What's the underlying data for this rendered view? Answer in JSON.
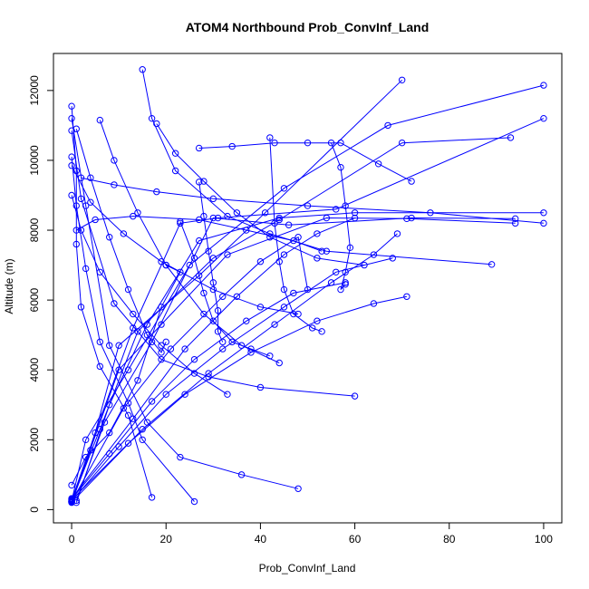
{
  "chart_data": {
    "type": "line",
    "title": "ATOM4 Northbound Prob_ConvInf_Land",
    "xlabel": "Prob_ConvInf_Land",
    "ylabel": "Altitude (m)",
    "xlim": [
      -3.85,
      103.85
    ],
    "ylim": [
      -379,
      13060
    ],
    "xticks": [
      0,
      20,
      40,
      60,
      80,
      100
    ],
    "yticks": [
      0,
      2000,
      4000,
      6000,
      8000,
      10000,
      12000
    ],
    "grid": false,
    "legend": "none",
    "color": "#0000FF",
    "series": [
      {
        "x": [
          0,
          4,
          10,
          27,
          41,
          70
        ],
        "y": [
          200,
          1700,
          4700,
          6700,
          8500,
          12300
        ]
      },
      {
        "x": [
          0,
          6,
          14,
          30,
          44,
          70,
          93
        ],
        "y": [
          230,
          2300,
          5100,
          7200,
          8300,
          10500,
          10650
        ]
      },
      {
        "x": [
          0,
          3,
          12,
          25,
          45,
          67,
          100
        ],
        "y": [
          250,
          2000,
          4000,
          7000,
          9200,
          11000,
          12150
        ]
      },
      {
        "x": [
          0,
          5,
          13,
          23,
          31,
          56,
          100
        ],
        "y": [
          270,
          2200,
          5200,
          8200,
          8350,
          8600,
          11200
        ]
      },
      {
        "x": [
          1,
          8,
          16,
          27,
          44,
          60,
          100
        ],
        "y": [
          200,
          3000,
          5300,
          7700,
          8350,
          8500,
          8500
        ]
      },
      {
        "x": [
          1,
          7,
          17,
          30,
          46,
          72,
          94
        ],
        "y": [
          260,
          2500,
          4800,
          8350,
          8150,
          8350,
          8330
        ]
      },
      {
        "x": [
          0,
          10,
          19,
          33,
          54,
          71,
          94
        ],
        "y": [
          220,
          4000,
          5300,
          7300,
          8350,
          8330,
          8200
        ]
      },
      {
        "x": [
          0,
          1,
          3,
          6,
          12,
          15,
          26
        ],
        "y": [
          10100,
          8700,
          6900,
          4800,
          3050,
          2000,
          230
        ]
      },
      {
        "x": [
          0,
          3,
          8,
          16,
          23,
          36,
          48
        ],
        "y": [
          11200,
          8700,
          4700,
          2500,
          1500,
          1000,
          600
        ]
      },
      {
        "x": [
          0,
          2,
          9,
          19,
          29,
          40,
          60
        ],
        "y": [
          10850,
          8900,
          5900,
          4300,
          3800,
          3500,
          3250
        ]
      },
      {
        "x": [
          15,
          17,
          22,
          33,
          42,
          54,
          89
        ],
        "y": [
          12600,
          11200,
          9700,
          8400,
          7900,
          7400,
          7020
        ]
      },
      {
        "x": [
          0,
          2,
          6,
          13,
          19,
          26,
          33
        ],
        "y": [
          9000,
          8000,
          6800,
          5600,
          4700,
          3900,
          3300
        ]
      },
      {
        "x": [
          2,
          9,
          18,
          30,
          50,
          76,
          100
        ],
        "y": [
          9500,
          9300,
          9100,
          8900,
          8700,
          8500,
          8200
        ]
      },
      {
        "x": [
          6,
          9,
          14,
          20,
          28,
          36,
          44
        ],
        "y": [
          11150,
          10000,
          8500,
          7000,
          5600,
          4700,
          4200
        ]
      },
      {
        "x": [
          27,
          34,
          43,
          50,
          57,
          65,
          72
        ],
        "y": [
          10350,
          10400,
          10500,
          10500,
          10500,
          9900,
          9400
        ]
      },
      {
        "x": [
          18,
          22,
          28,
          35,
          42,
          52,
          62
        ],
        "y": [
          11050,
          10200,
          9400,
          8500,
          7800,
          7200,
          7000
        ]
      },
      {
        "x": [
          42,
          43,
          44,
          45,
          47,
          51,
          53
        ],
        "y": [
          10650,
          8200,
          7100,
          6300,
          5600,
          5200,
          5100
        ]
      },
      {
        "x": [
          55,
          57,
          58,
          59,
          58,
          57,
          58
        ],
        "y": [
          10500,
          9800,
          8700,
          7500,
          6800,
          6300,
          6450
        ]
      },
      {
        "x": [
          1,
          5,
          13,
          27,
          37,
          47,
          53
        ],
        "y": [
          8000,
          8300,
          8400,
          8300,
          8000,
          7700,
          7400
        ]
      },
      {
        "x": [
          1,
          4,
          8,
          12,
          16,
          19,
          20
        ],
        "y": [
          10900,
          9500,
          7800,
          6300,
          5000,
          4500,
          4800
        ]
      },
      {
        "x": [
          0,
          1,
          1,
          2,
          6,
          12,
          17
        ],
        "y": [
          11550,
          9700,
          7600,
          5800,
          4100,
          2700,
          350
        ]
      },
      {
        "x": [
          0,
          4,
          11,
          19,
          30,
          40,
          48
        ],
        "y": [
          9850,
          8800,
          7900,
          7100,
          6300,
          5800,
          5600
        ]
      },
      {
        "x": [
          23,
          26,
          28,
          30,
          34,
          38,
          42
        ],
        "y": [
          8250,
          7200,
          6200,
          5400,
          4800,
          4600,
          4400
        ]
      },
      {
        "x": [
          27,
          28,
          29,
          30,
          31,
          31,
          32
        ],
        "y": [
          9380,
          8400,
          7400,
          6500,
          5700,
          5100,
          4800
        ]
      },
      {
        "x": [
          0,
          3,
          8,
          14,
          19,
          23,
          20
        ],
        "y": [
          700,
          1500,
          2200,
          3700,
          5800,
          6800,
          7000
        ]
      },
      {
        "x": [
          0,
          8,
          17,
          26,
          37,
          47,
          58
        ],
        "y": [
          300,
          1600,
          3100,
          4300,
          5400,
          6200,
          6500
        ]
      },
      {
        "x": [
          0,
          10,
          20,
          32,
          45,
          56,
          68
        ],
        "y": [
          240,
          1800,
          3300,
          4600,
          5800,
          6800,
          7200
        ]
      },
      {
        "x": [
          0,
          12,
          24,
          38,
          52,
          64,
          71
        ],
        "y": [
          280,
          1900,
          3300,
          4500,
          5400,
          5900,
          6100
        ]
      },
      {
        "x": [
          0,
          15,
          29,
          43,
          55,
          64,
          69
        ],
        "y": [
          210,
          2300,
          3900,
          5300,
          6500,
          7300,
          7900
        ]
      },
      {
        "x": [
          0,
          13,
          24,
          35,
          45,
          52,
          60
        ],
        "y": [
          320,
          2600,
          4600,
          6100,
          7300,
          7900,
          8350
        ]
      },
      {
        "x": [
          0,
          11,
          21,
          32,
          40,
          48,
          50
        ],
        "y": [
          230,
          2900,
          4600,
          6100,
          7100,
          7800,
          6300
        ]
      }
    ]
  }
}
